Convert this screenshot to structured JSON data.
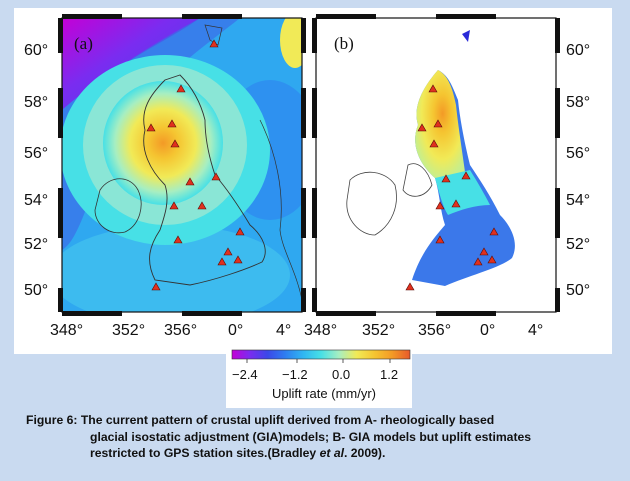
{
  "panels": [
    {
      "label": "(a)"
    },
    {
      "label": "(b)"
    }
  ],
  "latitude_ticks": [
    "60°",
    "58°",
    "56°",
    "54°",
    "52°",
    "50°"
  ],
  "longitude_ticks_a": [
    "348°",
    "352°",
    "356°",
    "0°",
    "4°"
  ],
  "longitude_ticks_b": [
    "348°",
    "352°",
    "356°",
    "0°",
    "4°"
  ],
  "colorbar": {
    "tick_labels": [
      "−2.4",
      "−1.2",
      "0.0",
      "1.2"
    ],
    "title": "Uplift rate (mm/yr)",
    "colors": [
      "#c400d6",
      "#7a2cf0",
      "#3b48e8",
      "#2e7ef0",
      "#2fb6f2",
      "#47e0e6",
      "#a6eec2",
      "#f1ea57",
      "#f5c531",
      "#f39a26",
      "#e85a2a"
    ]
  },
  "caption": {
    "line1": "Figure 6: The current pattern of crustal uplift derived from A- rheologically based",
    "line2": "glacial isostatic adjustment  (GIA)models; B- GIA models but uplift estimates",
    "line3_pre": "restricted to GPS station sites.(Bradley ",
    "line3_italic": "et al",
    "line3_post": ". 2009)."
  },
  "gps_station_marker_color": "#e0301e"
}
